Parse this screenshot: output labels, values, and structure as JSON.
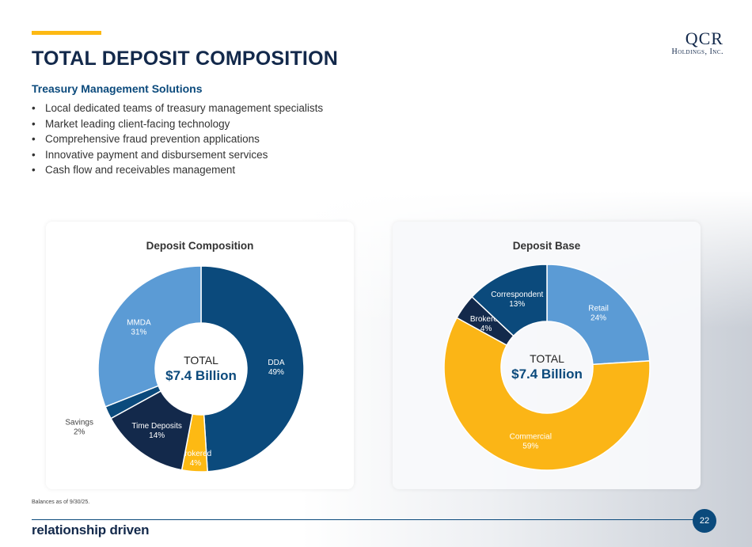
{
  "header": {
    "title": "TOTAL DEPOSIT COMPOSITION",
    "logo_main": "QCR",
    "logo_sub": "Holdings, Inc."
  },
  "subtitle": "Treasury Management Solutions",
  "bullets": [
    "Local dedicated teams of treasury management specialists",
    "Market leading client-facing technology",
    "Comprehensive fraud prevention applications",
    "Innovative payment and disbursement services",
    "Cash flow and receivables management"
  ],
  "chart_data": [
    {
      "type": "pie",
      "title": "Deposit Composition",
      "center_label": "TOTAL",
      "center_value": "$7.4 Billion",
      "categories": [
        "DDA",
        "Brokered",
        "Time Deposits",
        "Savings",
        "MMDA"
      ],
      "values": [
        49,
        4,
        14,
        2,
        31
      ],
      "value_labels": [
        "49%",
        "4%",
        "14%",
        "2%",
        "31%"
      ],
      "colors": [
        "#0b4a7c",
        "#fdb913",
        "#13294b",
        "#0b4a7c",
        "#5b9bd5"
      ]
    },
    {
      "type": "pie",
      "title": "Deposit Base",
      "center_label": "TOTAL",
      "center_value": "$7.4 Billion",
      "categories": [
        "Retail",
        "Commercial",
        "Brokered",
        "Correspondent"
      ],
      "values": [
        24,
        59,
        4,
        13
      ],
      "value_labels": [
        "24%",
        "59%",
        "4%",
        "13%"
      ],
      "colors": [
        "#5b9bd5",
        "#fbb516",
        "#13294b",
        "#0b4a7c"
      ]
    }
  ],
  "footer": {
    "footnote": "Balances as of 9/30/25.",
    "tagline": "relationship driven",
    "page": "22"
  }
}
